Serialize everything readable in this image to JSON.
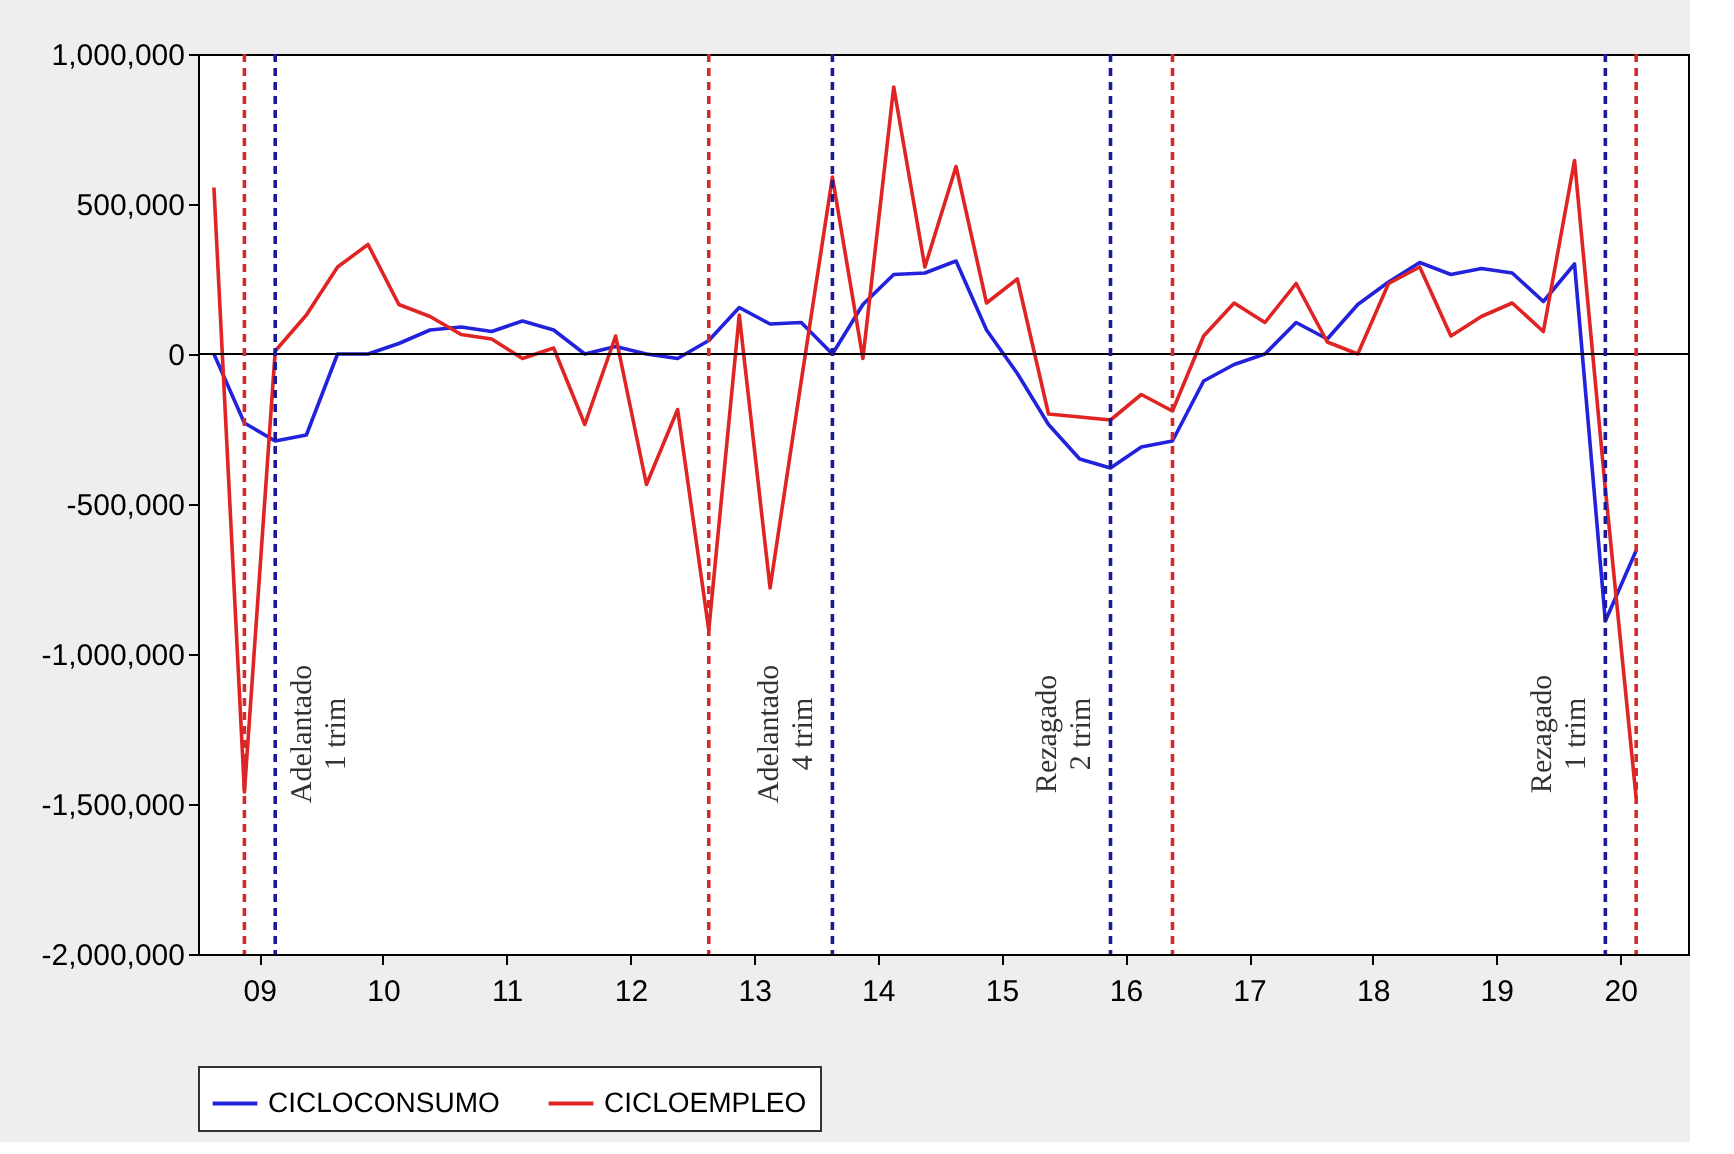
{
  "chart_data": {
    "type": "line",
    "x": [
      "2009-01",
      "2009-04",
      "2009-07",
      "2009-10",
      "2010-01",
      "2010-04",
      "2010-07",
      "2010-10",
      "2011-01",
      "2011-04",
      "2011-07",
      "2011-10",
      "2012-01",
      "2012-04",
      "2012-07",
      "2012-10",
      "2013-01",
      "2013-04",
      "2013-07",
      "2013-10",
      "2014-01",
      "2014-04",
      "2014-07",
      "2014-10",
      "2015-01",
      "2015-04",
      "2015-07",
      "2015-10",
      "2016-01",
      "2016-04",
      "2016-07",
      "2016-10",
      "2017-01",
      "2017-04",
      "2017-07",
      "2017-10",
      "2018-01",
      "2018-04",
      "2018-07",
      "2018-10",
      "2019-01",
      "2019-04",
      "2019-07",
      "2019-10",
      "2020-01",
      "2020-04",
      "2020-07"
    ],
    "series": [
      {
        "name": "CICLOCONSUMO",
        "color": "#2222dd",
        "values": [
          0,
          -230000,
          -290000,
          -270000,
          0,
          0,
          35000,
          80000,
          90000,
          75000,
          110000,
          80000,
          0,
          25000,
          0,
          -15000,
          45000,
          155000,
          100000,
          105000,
          0,
          165000,
          265000,
          270000,
          310000,
          80000,
          -65000,
          -235000,
          -350000,
          -380000,
          -310000,
          -290000,
          -90000,
          -35000,
          0,
          105000,
          50000,
          165000,
          240000,
          305000,
          265000,
          285000,
          270000,
          175000,
          300000,
          -890000,
          -655000
        ]
      },
      {
        "name": "CICLOEMPLEO",
        "color": "#e02424",
        "values": [
          555000,
          -1460000,
          10000,
          130000,
          290000,
          365000,
          165000,
          125000,
          65000,
          50000,
          -15000,
          20000,
          -235000,
          60000,
          -435000,
          -185000,
          -920000,
          130000,
          -780000,
          -90000,
          590000,
          -15000,
          890000,
          290000,
          625000,
          170000,
          250000,
          -200000,
          -210000,
          -220000,
          -135000,
          -190000,
          60000,
          170000,
          105000,
          235000,
          40000,
          0,
          235000,
          290000,
          60000,
          125000,
          170000,
          75000,
          645000,
          -450000,
          -1480000
        ]
      }
    ],
    "xlim": [
      "2008-11-15",
      "2020-12-01"
    ],
    "xticks": [
      {
        "value": "2009-05-15",
        "label": "09"
      },
      {
        "value": "2010-05-15",
        "label": "10"
      },
      {
        "value": "2011-05-15",
        "label": "11"
      },
      {
        "value": "2012-05-15",
        "label": "12"
      },
      {
        "value": "2013-05-15",
        "label": "13"
      },
      {
        "value": "2014-05-15",
        "label": "14"
      },
      {
        "value": "2015-05-15",
        "label": "15"
      },
      {
        "value": "2016-05-15",
        "label": "16"
      },
      {
        "value": "2017-05-15",
        "label": "17"
      },
      {
        "value": "2018-05-15",
        "label": "18"
      },
      {
        "value": "2019-05-15",
        "label": "19"
      },
      {
        "value": "2020-05-15",
        "label": "20"
      }
    ],
    "ylim": [
      -2000000,
      1000000
    ],
    "yticks": [
      {
        "value": -2000000,
        "label": "-2,000,000"
      },
      {
        "value": -1500000,
        "label": "-1,500,000"
      },
      {
        "value": -1000000,
        "label": "-1,000,000"
      },
      {
        "value": -500000,
        "label": "-500,000"
      },
      {
        "value": 0,
        "label": "0"
      },
      {
        "value": 500000,
        "label": "500,000"
      },
      {
        "value": 1000000,
        "label": "1,000,000"
      }
    ],
    "ref_lines": [
      {
        "axis": "y",
        "value": 0,
        "color": "#000000",
        "line_style": "solid"
      },
      {
        "axis": "x",
        "value": "2009-04",
        "color": "#d42a2a",
        "line_style": "dashed"
      },
      {
        "axis": "x",
        "value": "2009-07",
        "color": "#1a1a99",
        "line_style": "dashed",
        "label": "Adelantado\n1 trim"
      },
      {
        "axis": "x",
        "value": "2013-01",
        "color": "#d42a2a",
        "line_style": "dashed"
      },
      {
        "axis": "x",
        "value": "2014-01",
        "color": "#1a1a99",
        "line_style": "dashed",
        "label": "Adelantado\n4 trim"
      },
      {
        "axis": "x",
        "value": "2016-04",
        "color": "#1a1a99",
        "line_style": "dashed",
        "label": "Rezagado\n2 trim"
      },
      {
        "axis": "x",
        "value": "2016-10",
        "color": "#d42a2a",
        "line_style": "dashed"
      },
      {
        "axis": "x",
        "value": "2020-04",
        "color": "#1a1a99",
        "line_style": "dashed",
        "label": "Rezagado\n1 trim"
      },
      {
        "axis": "x",
        "value": "2020-07",
        "color": "#d42a2a",
        "line_style": "dashed"
      }
    ],
    "grid": false,
    "legend": "bottom",
    "marker": "none",
    "line_style": "solid"
  }
}
